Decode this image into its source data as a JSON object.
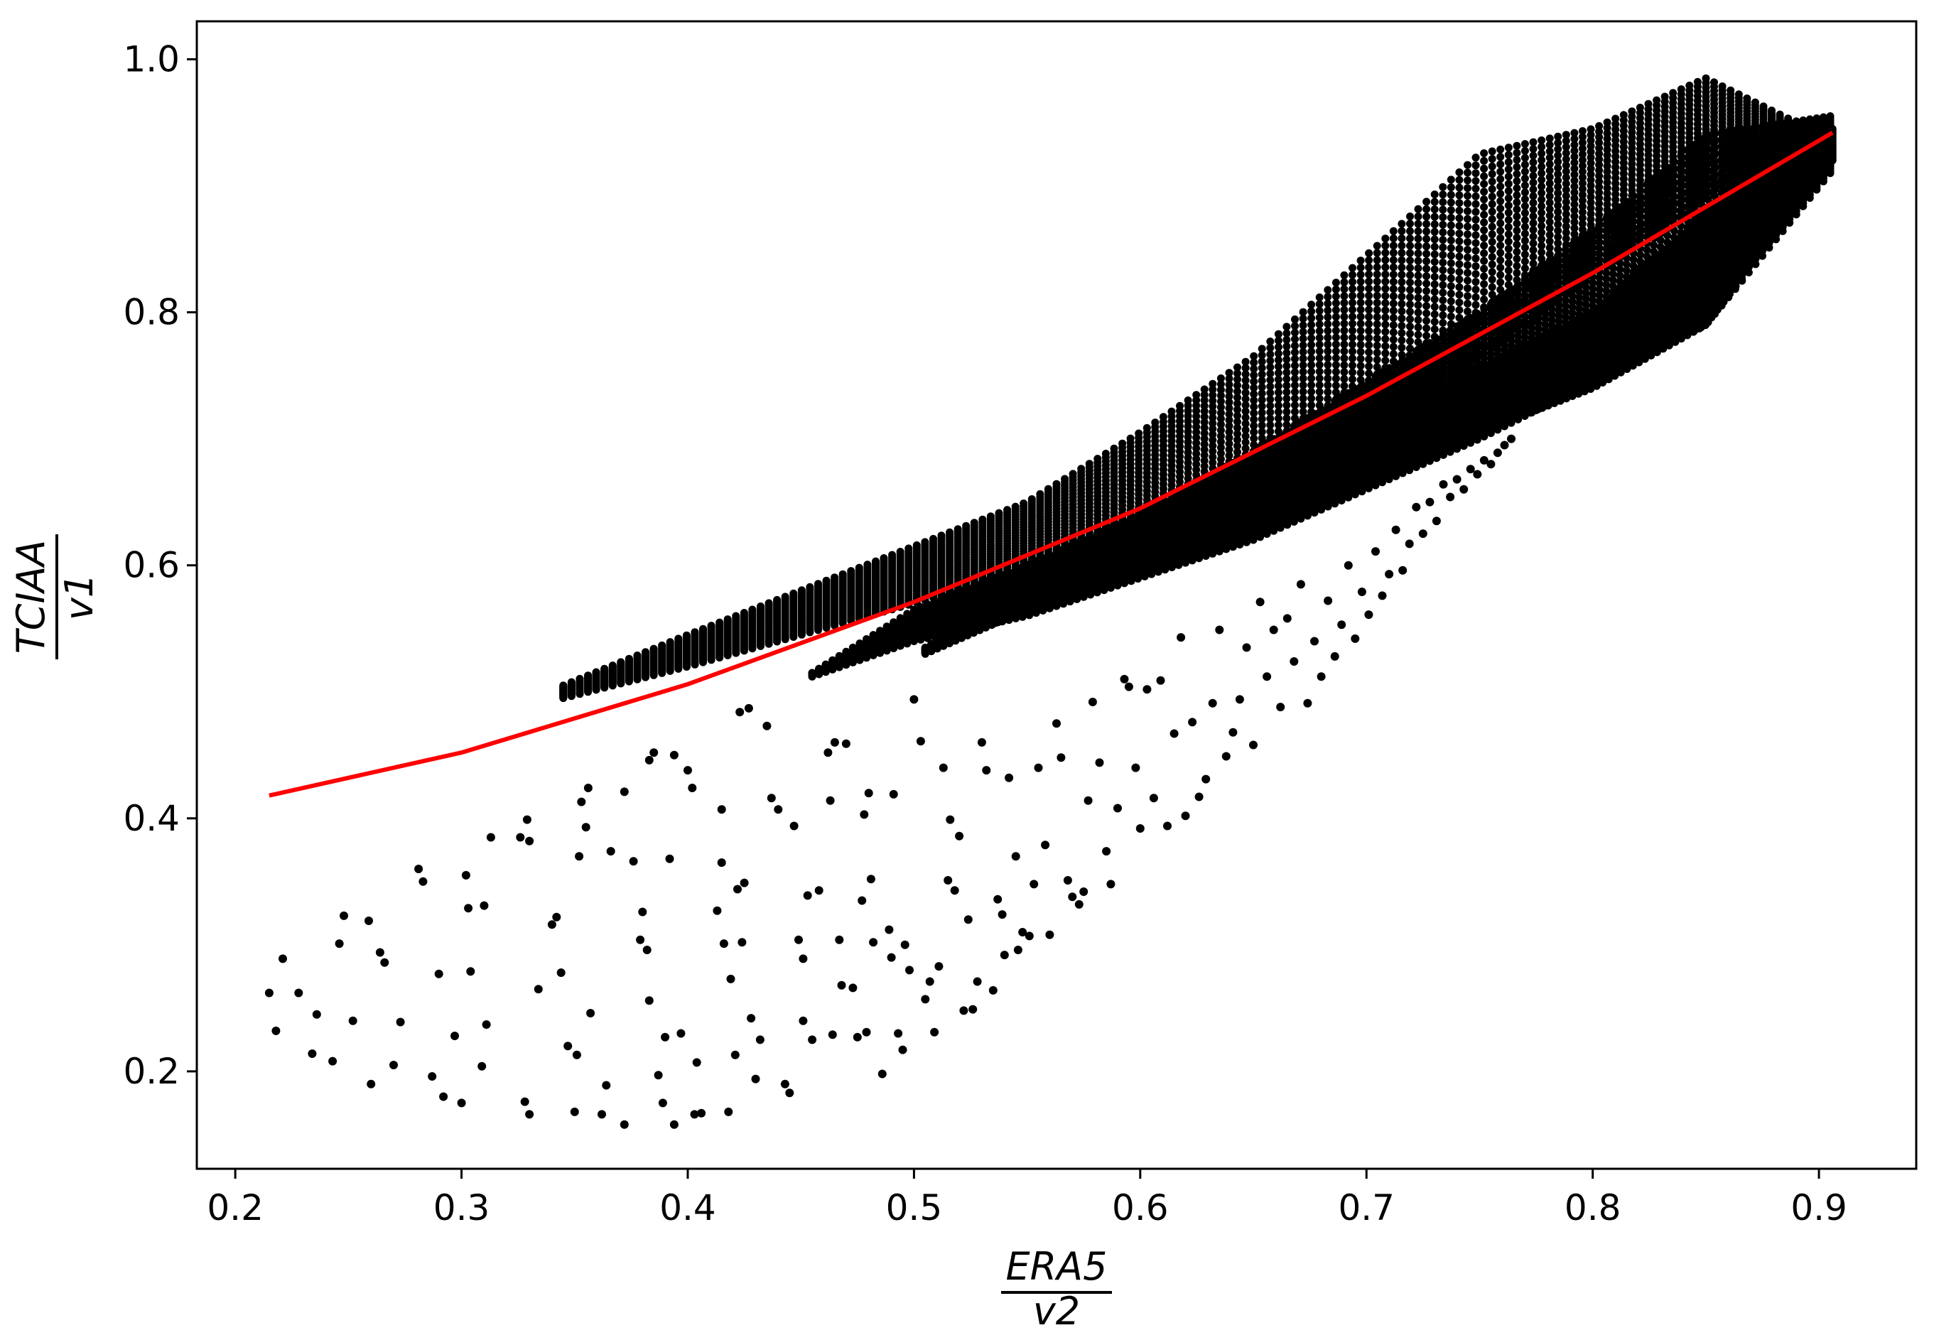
{
  "chart_data": {
    "type": "scatter",
    "title": "",
    "xlabel": {
      "numerator": "ERA5",
      "denominator": "v2"
    },
    "ylabel": {
      "numerator": "TCIAA",
      "denominator": "v1"
    },
    "xlim": [
      0.183,
      0.943
    ],
    "ylim": [
      0.123,
      1.03
    ],
    "xticks": [
      "0.2",
      "0.3",
      "0.4",
      "0.5",
      "0.6",
      "0.7",
      "0.8",
      "0.9"
    ],
    "yticks": [
      "0.2",
      "0.4",
      "0.6",
      "0.8",
      "1.0"
    ],
    "grid": false,
    "legend": "none",
    "colors": {
      "points": "#000000",
      "fit_line": "#ff0000"
    },
    "fit_line": {
      "x": [
        0.215,
        0.3,
        0.4,
        0.5,
        0.6,
        0.7,
        0.8,
        0.906
      ],
      "y": [
        0.418,
        0.452,
        0.506,
        0.571,
        0.645,
        0.734,
        0.831,
        0.942
      ]
    },
    "dense_bands": [
      {
        "x": [
          0.345,
          0.4,
          0.45,
          0.5,
          0.55,
          0.6,
          0.65,
          0.7,
          0.75,
          0.8,
          0.85,
          0.89
        ],
        "y_low": [
          0.495,
          0.52,
          0.545,
          0.57,
          0.595,
          0.615,
          0.635,
          0.7,
          0.765,
          0.83,
          0.89,
          0.92
        ],
        "y_high": [
          0.505,
          0.545,
          0.58,
          0.615,
          0.65,
          0.705,
          0.765,
          0.845,
          0.925,
          0.945,
          0.985,
          0.95
        ]
      },
      {
        "x": [
          0.455,
          0.5,
          0.55,
          0.6,
          0.65,
          0.7,
          0.75,
          0.8,
          0.85,
          0.905
        ],
        "y_low": [
          0.512,
          0.54,
          0.56,
          0.59,
          0.62,
          0.66,
          0.7,
          0.745,
          0.79,
          0.91
        ],
        "y_high": [
          0.515,
          0.565,
          0.6,
          0.64,
          0.69,
          0.745,
          0.8,
          0.865,
          0.94,
          0.955
        ]
      },
      {
        "x": [
          0.505,
          0.55,
          0.6,
          0.65,
          0.7,
          0.75,
          0.8,
          0.85,
          0.906
        ],
        "y_low": [
          0.53,
          0.565,
          0.595,
          0.63,
          0.67,
          0.705,
          0.74,
          0.79,
          0.92
        ],
        "y_high": [
          0.535,
          0.585,
          0.615,
          0.66,
          0.71,
          0.755,
          0.8,
          0.88,
          0.945
        ]
      }
    ],
    "points": [
      [
        0.215,
        0.262
      ],
      [
        0.218,
        0.232
      ],
      [
        0.221,
        0.289
      ],
      [
        0.228,
        0.262
      ],
      [
        0.234,
        0.214
      ],
      [
        0.236,
        0.245
      ],
      [
        0.243,
        0.208
      ],
      [
        0.246,
        0.301
      ],
      [
        0.248,
        0.323
      ],
      [
        0.252,
        0.24
      ],
      [
        0.259,
        0.319
      ],
      [
        0.26,
        0.19
      ],
      [
        0.264,
        0.294
      ],
      [
        0.266,
        0.286
      ],
      [
        0.27,
        0.205
      ],
      [
        0.273,
        0.239
      ],
      [
        0.281,
        0.36
      ],
      [
        0.283,
        0.35
      ],
      [
        0.287,
        0.196
      ],
      [
        0.29,
        0.277
      ],
      [
        0.292,
        0.18
      ],
      [
        0.297,
        0.228
      ],
      [
        0.3,
        0.175
      ],
      [
        0.302,
        0.355
      ],
      [
        0.303,
        0.329
      ],
      [
        0.304,
        0.279
      ],
      [
        0.309,
        0.204
      ],
      [
        0.31,
        0.331
      ],
      [
        0.311,
        0.237
      ],
      [
        0.313,
        0.385
      ],
      [
        0.326,
        0.385
      ],
      [
        0.328,
        0.176
      ],
      [
        0.329,
        0.399
      ],
      [
        0.33,
        0.382
      ],
      [
        0.33,
        0.166
      ],
      [
        0.334,
        0.265
      ],
      [
        0.34,
        0.316
      ],
      [
        0.342,
        0.322
      ],
      [
        0.344,
        0.278
      ],
      [
        0.347,
        0.22
      ],
      [
        0.35,
        0.168
      ],
      [
        0.351,
        0.213
      ],
      [
        0.352,
        0.37
      ],
      [
        0.353,
        0.413
      ],
      [
        0.355,
        0.393
      ],
      [
        0.356,
        0.424
      ],
      [
        0.357,
        0.246
      ],
      [
        0.362,
        0.166
      ],
      [
        0.364,
        0.189
      ],
      [
        0.366,
        0.374
      ],
      [
        0.372,
        0.158
      ],
      [
        0.372,
        0.421
      ],
      [
        0.376,
        0.366
      ],
      [
        0.379,
        0.304
      ],
      [
        0.38,
        0.326
      ],
      [
        0.382,
        0.296
      ],
      [
        0.383,
        0.446
      ],
      [
        0.383,
        0.256
      ],
      [
        0.385,
        0.452
      ],
      [
        0.387,
        0.197
      ],
      [
        0.389,
        0.175
      ],
      [
        0.39,
        0.227
      ],
      [
        0.392,
        0.368
      ],
      [
        0.394,
        0.45
      ],
      [
        0.394,
        0.158
      ],
      [
        0.397,
        0.23
      ],
      [
        0.4,
        0.438
      ],
      [
        0.402,
        0.424
      ],
      [
        0.403,
        0.166
      ],
      [
        0.404,
        0.207
      ],
      [
        0.406,
        0.167
      ],
      [
        0.413,
        0.327
      ],
      [
        0.415,
        0.407
      ],
      [
        0.415,
        0.365
      ],
      [
        0.416,
        0.301
      ],
      [
        0.418,
        0.168
      ],
      [
        0.419,
        0.273
      ],
      [
        0.421,
        0.213
      ],
      [
        0.422,
        0.344
      ],
      [
        0.423,
        0.484
      ],
      [
        0.424,
        0.302
      ],
      [
        0.425,
        0.349
      ],
      [
        0.427,
        0.487
      ],
      [
        0.428,
        0.242
      ],
      [
        0.43,
        0.194
      ],
      [
        0.432,
        0.225
      ],
      [
        0.435,
        0.473
      ],
      [
        0.437,
        0.416
      ],
      [
        0.44,
        0.407
      ],
      [
        0.443,
        0.19
      ],
      [
        0.445,
        0.183
      ],
      [
        0.447,
        0.394
      ],
      [
        0.449,
        0.304
      ],
      [
        0.451,
        0.289
      ],
      [
        0.451,
        0.24
      ],
      [
        0.453,
        0.339
      ],
      [
        0.455,
        0.225
      ],
      [
        0.458,
        0.343
      ],
      [
        0.462,
        0.452
      ],
      [
        0.463,
        0.414
      ],
      [
        0.464,
        0.229
      ],
      [
        0.465,
        0.46
      ],
      [
        0.467,
        0.304
      ],
      [
        0.468,
        0.268
      ],
      [
        0.47,
        0.459
      ],
      [
        0.473,
        0.266
      ],
      [
        0.475,
        0.227
      ],
      [
        0.477,
        0.335
      ],
      [
        0.478,
        0.403
      ],
      [
        0.479,
        0.231
      ],
      [
        0.48,
        0.42
      ],
      [
        0.481,
        0.352
      ],
      [
        0.482,
        0.302
      ],
      [
        0.486,
        0.198
      ],
      [
        0.489,
        0.312
      ],
      [
        0.49,
        0.29
      ],
      [
        0.491,
        0.419
      ],
      [
        0.493,
        0.23
      ],
      [
        0.495,
        0.217
      ],
      [
        0.496,
        0.3
      ],
      [
        0.498,
        0.28
      ],
      [
        0.5,
        0.494
      ],
      [
        0.503,
        0.461
      ],
      [
        0.505,
        0.257
      ],
      [
        0.507,
        0.271
      ],
      [
        0.509,
        0.231
      ],
      [
        0.511,
        0.283
      ],
      [
        0.513,
        0.44
      ],
      [
        0.515,
        0.351
      ],
      [
        0.516,
        0.399
      ],
      [
        0.518,
        0.343
      ],
      [
        0.52,
        0.386
      ],
      [
        0.522,
        0.248
      ],
      [
        0.524,
        0.32
      ],
      [
        0.526,
        0.249
      ],
      [
        0.528,
        0.271
      ],
      [
        0.53,
        0.46
      ],
      [
        0.532,
        0.438
      ],
      [
        0.535,
        0.264
      ],
      [
        0.537,
        0.336
      ],
      [
        0.539,
        0.324
      ],
      [
        0.54,
        0.292
      ],
      [
        0.542,
        0.432
      ],
      [
        0.545,
        0.37
      ],
      [
        0.546,
        0.296
      ],
      [
        0.548,
        0.31
      ],
      [
        0.551,
        0.307
      ],
      [
        0.553,
        0.348
      ],
      [
        0.555,
        0.44
      ],
      [
        0.558,
        0.379
      ],
      [
        0.56,
        0.308
      ],
      [
        0.563,
        0.475
      ],
      [
        0.565,
        0.448
      ],
      [
        0.568,
        0.351
      ],
      [
        0.57,
        0.338
      ],
      [
        0.573,
        0.332
      ],
      [
        0.575,
        0.342
      ],
      [
        0.577,
        0.414
      ],
      [
        0.579,
        0.492
      ],
      [
        0.582,
        0.444
      ],
      [
        0.585,
        0.374
      ],
      [
        0.587,
        0.348
      ],
      [
        0.59,
        0.408
      ],
      [
        0.593,
        0.51
      ],
      [
        0.595,
        0.504
      ],
      [
        0.598,
        0.44
      ],
      [
        0.6,
        0.392
      ],
      [
        0.603,
        0.502
      ],
      [
        0.606,
        0.416
      ],
      [
        0.609,
        0.509
      ],
      [
        0.612,
        0.394
      ],
      [
        0.615,
        0.467
      ],
      [
        0.618,
        0.543
      ],
      [
        0.62,
        0.402
      ],
      [
        0.623,
        0.476
      ],
      [
        0.626,
        0.417
      ],
      [
        0.629,
        0.431
      ],
      [
        0.632,
        0.491
      ],
      [
        0.635,
        0.549
      ],
      [
        0.638,
        0.449
      ],
      [
        0.641,
        0.468
      ],
      [
        0.644,
        0.494
      ],
      [
        0.647,
        0.535
      ],
      [
        0.65,
        0.458
      ],
      [
        0.653,
        0.571
      ],
      [
        0.656,
        0.512
      ],
      [
        0.659,
        0.549
      ],
      [
        0.662,
        0.488
      ],
      [
        0.665,
        0.558
      ],
      [
        0.668,
        0.524
      ],
      [
        0.671,
        0.585
      ],
      [
        0.674,
        0.491
      ],
      [
        0.677,
        0.54
      ],
      [
        0.68,
        0.512
      ],
      [
        0.683,
        0.572
      ],
      [
        0.686,
        0.528
      ],
      [
        0.689,
        0.553
      ],
      [
        0.692,
        0.6
      ],
      [
        0.695,
        0.542
      ],
      [
        0.698,
        0.579
      ],
      [
        0.701,
        0.561
      ],
      [
        0.704,
        0.611
      ],
      [
        0.707,
        0.576
      ],
      [
        0.71,
        0.593
      ],
      [
        0.713,
        0.628
      ],
      [
        0.716,
        0.596
      ],
      [
        0.719,
        0.617
      ],
      [
        0.722,
        0.646
      ],
      [
        0.725,
        0.625
      ],
      [
        0.728,
        0.65
      ],
      [
        0.731,
        0.635
      ],
      [
        0.734,
        0.664
      ],
      [
        0.737,
        0.654
      ],
      [
        0.74,
        0.668
      ],
      [
        0.743,
        0.66
      ],
      [
        0.746,
        0.676
      ],
      [
        0.749,
        0.672
      ],
      [
        0.752,
        0.683
      ],
      [
        0.755,
        0.68
      ],
      [
        0.758,
        0.689
      ],
      [
        0.761,
        0.695
      ],
      [
        0.764,
        0.7
      ]
    ]
  }
}
